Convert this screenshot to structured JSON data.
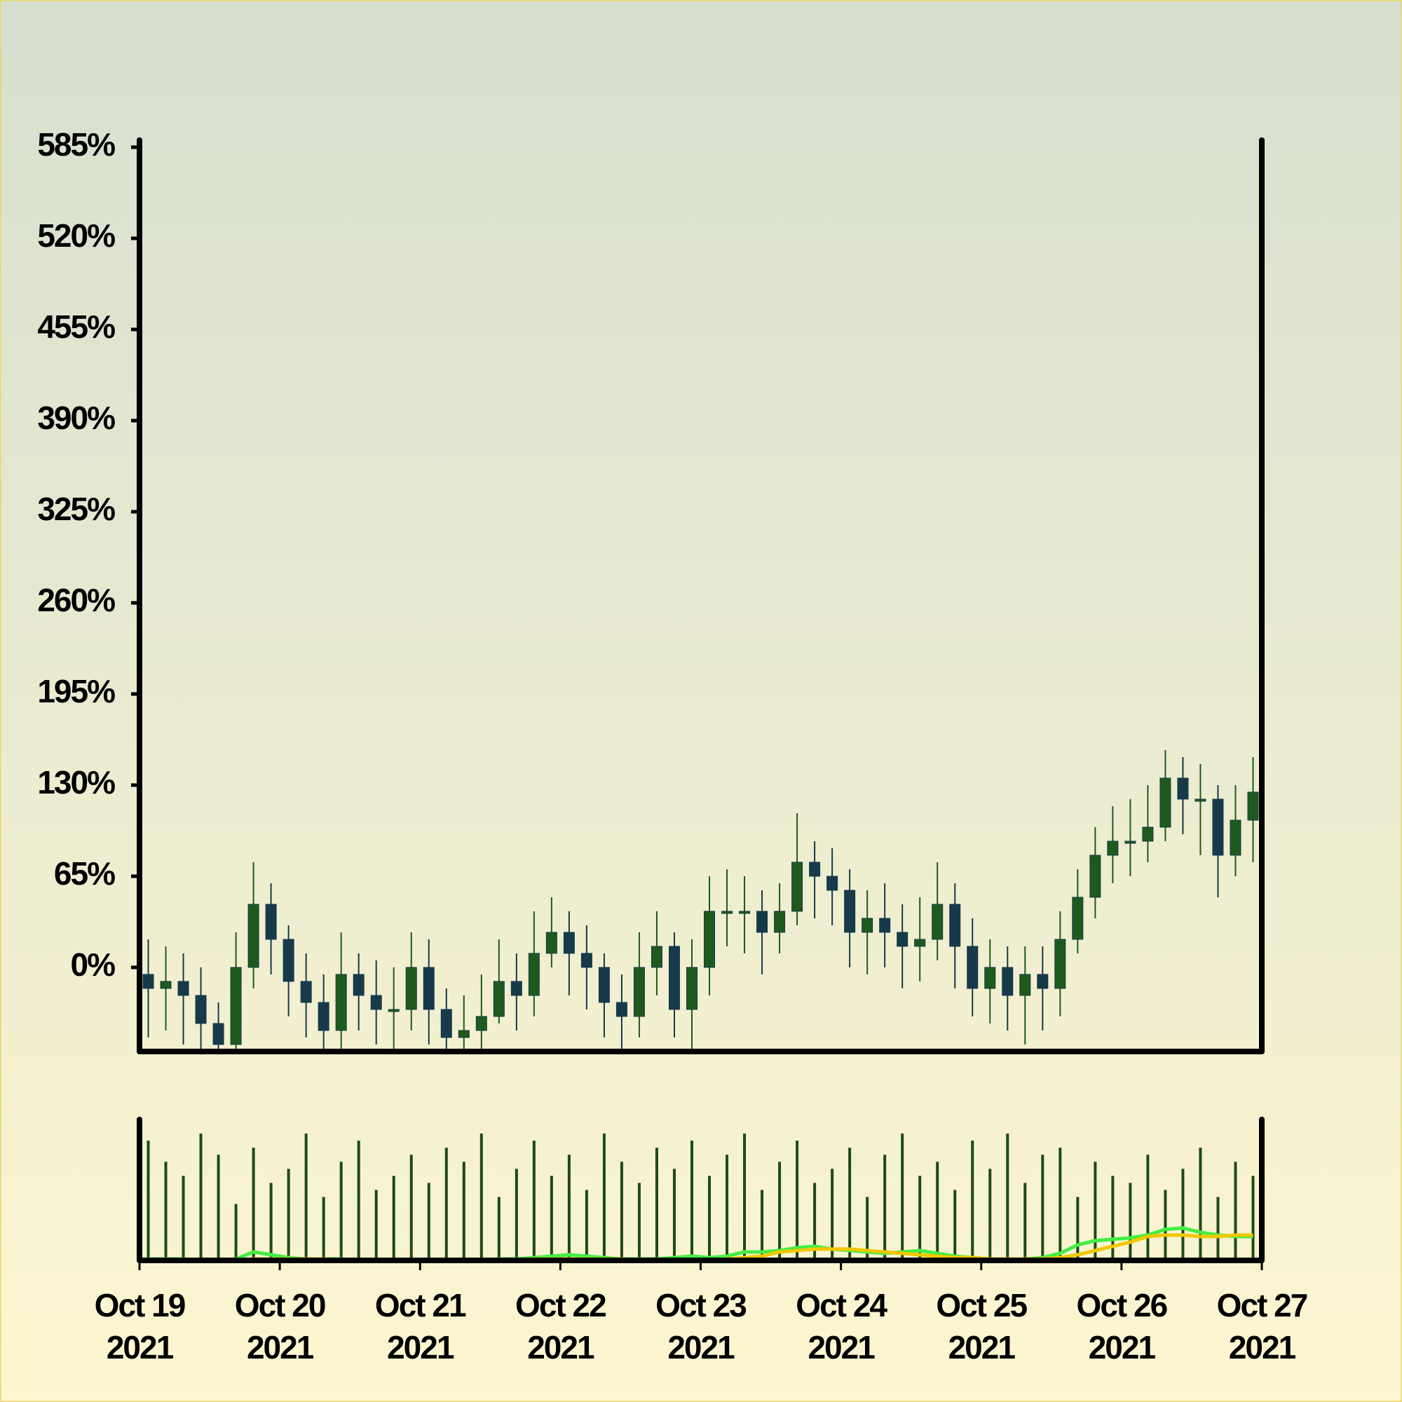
{
  "chart_data": {
    "type": "candlestick",
    "x": [
      "2021-10-19T00:00",
      "2021-10-19T03:00",
      "2021-10-19T06:00",
      "2021-10-19T09:00",
      "2021-10-19T12:00",
      "2021-10-19T15:00",
      "2021-10-19T18:00",
      "2021-10-19T21:00",
      "2021-10-20T00:00",
      "2021-10-20T03:00",
      "2021-10-20T06:00",
      "2021-10-20T09:00",
      "2021-10-20T12:00",
      "2021-10-20T15:00",
      "2021-10-20T18:00",
      "2021-10-20T21:00",
      "2021-10-21T00:00",
      "2021-10-21T03:00",
      "2021-10-21T06:00",
      "2021-10-21T09:00",
      "2021-10-21T12:00",
      "2021-10-21T15:00",
      "2021-10-21T18:00",
      "2021-10-21T21:00",
      "2021-10-22T00:00",
      "2021-10-22T03:00",
      "2021-10-22T06:00",
      "2021-10-22T09:00",
      "2021-10-22T12:00",
      "2021-10-22T15:00",
      "2021-10-22T18:00",
      "2021-10-22T21:00",
      "2021-10-23T00:00",
      "2021-10-23T03:00",
      "2021-10-23T06:00",
      "2021-10-23T09:00",
      "2021-10-23T12:00",
      "2021-10-23T15:00",
      "2021-10-23T18:00",
      "2021-10-23T21:00",
      "2021-10-24T00:00",
      "2021-10-24T03:00",
      "2021-10-24T06:00",
      "2021-10-24T09:00",
      "2021-10-24T12:00",
      "2021-10-24T15:00",
      "2021-10-24T18:00",
      "2021-10-24T21:00",
      "2021-10-25T00:00",
      "2021-10-25T03:00",
      "2021-10-25T06:00",
      "2021-10-25T09:00",
      "2021-10-25T12:00",
      "2021-10-25T15:00",
      "2021-10-25T18:00",
      "2021-10-25T21:00",
      "2021-10-26T00:00",
      "2021-10-26T03:00",
      "2021-10-26T06:00",
      "2021-10-26T09:00",
      "2021-10-26T12:00",
      "2021-10-26T15:00",
      "2021-10-26T18:00",
      "2021-10-26T21:00"
    ],
    "open": [
      -5,
      -15,
      -10,
      -20,
      -40,
      -55,
      0,
      45,
      20,
      -10,
      -25,
      -45,
      -5,
      -20,
      -30,
      -30,
      0,
      -30,
      -50,
      -45,
      -35,
      -10,
      -20,
      10,
      25,
      10,
      0,
      -25,
      -35,
      0,
      15,
      -30,
      0,
      40,
      40,
      40,
      25,
      40,
      75,
      65,
      55,
      25,
      35,
      25,
      15,
      20,
      45,
      15,
      -15,
      0,
      -20,
      -5,
      -15,
      20,
      50,
      80,
      90,
      90,
      100,
      135,
      120,
      120,
      80,
      105
    ],
    "high": [
      20,
      15,
      10,
      0,
      -25,
      25,
      75,
      60,
      30,
      10,
      -5,
      25,
      10,
      5,
      0,
      25,
      20,
      -15,
      -20,
      -5,
      20,
      10,
      40,
      50,
      40,
      30,
      10,
      -5,
      25,
      40,
      25,
      20,
      65,
      70,
      65,
      55,
      60,
      110,
      90,
      85,
      70,
      55,
      60,
      45,
      50,
      75,
      60,
      35,
      20,
      15,
      15,
      15,
      40,
      70,
      100,
      115,
      120,
      130,
      155,
      150,
      145,
      130,
      130,
      150
    ],
    "low": [
      -50,
      -45,
      -55,
      -60,
      -60,
      -60,
      -15,
      -5,
      -35,
      -50,
      -60,
      -60,
      -45,
      -55,
      -60,
      -45,
      -55,
      -60,
      -60,
      -60,
      -40,
      -45,
      -35,
      0,
      -20,
      -30,
      -50,
      -60,
      -50,
      -20,
      -50,
      -60,
      -20,
      15,
      10,
      -5,
      10,
      30,
      35,
      30,
      0,
      -5,
      0,
      -15,
      -10,
      5,
      -15,
      -35,
      -40,
      -45,
      -55,
      -45,
      -35,
      10,
      35,
      60,
      65,
      75,
      90,
      95,
      80,
      50,
      65,
      75
    ],
    "close": [
      -15,
      -10,
      -20,
      -40,
      -55,
      0,
      45,
      20,
      -10,
      -25,
      -45,
      -5,
      -20,
      -30,
      -30,
      0,
      -30,
      -50,
      -45,
      -35,
      -10,
      -20,
      10,
      25,
      10,
      0,
      -25,
      -35,
      0,
      15,
      -30,
      0,
      40,
      40,
      40,
      25,
      40,
      75,
      65,
      55,
      25,
      35,
      25,
      15,
      20,
      45,
      15,
      -15,
      0,
      -20,
      -5,
      -15,
      20,
      50,
      80,
      90,
      90,
      100,
      135,
      120,
      120,
      80,
      105,
      125
    ],
    "color_up": "#1e5a1e",
    "color_down": "#163a4a",
    "xlim": [
      "2021-10-19T00:00",
      "2021-10-27T00:00"
    ],
    "ylim": [
      -60,
      590
    ],
    "yticks": [
      {
        "value": 0,
        "label": "0%"
      },
      {
        "value": 65,
        "label": "65%"
      },
      {
        "value": 130,
        "label": "130%"
      },
      {
        "value": 195,
        "label": "195%"
      },
      {
        "value": 260,
        "label": "260%"
      },
      {
        "value": 325,
        "label": "325%"
      },
      {
        "value": 390,
        "label": "390%"
      },
      {
        "value": 455,
        "label": "455%"
      },
      {
        "value": 520,
        "label": "520%"
      },
      {
        "value": 585,
        "label": "585%"
      }
    ],
    "xticks": [
      {
        "value": "2021-10-19T00:00",
        "label": [
          "Oct 19",
          "2021"
        ]
      },
      {
        "value": "2021-10-20T00:00",
        "label": [
          "Oct 20",
          "2021"
        ]
      },
      {
        "value": "2021-10-21T00:00",
        "label": [
          "Oct 21",
          "2021"
        ]
      },
      {
        "value": "2021-10-22T00:00",
        "label": [
          "Oct 22",
          "2021"
        ]
      },
      {
        "value": "2021-10-23T00:00",
        "label": [
          "Oct 23",
          "2021"
        ]
      },
      {
        "value": "2021-10-24T00:00",
        "label": [
          "Oct 24",
          "2021"
        ]
      },
      {
        "value": "2021-10-25T00:00",
        "label": [
          "Oct 25",
          "2021"
        ]
      },
      {
        "value": "2021-10-26T00:00",
        "label": [
          "Oct 26",
          "2021"
        ]
      },
      {
        "value": "2021-10-27T00:00",
        "label": [
          "Oct 27",
          "2021"
        ]
      }
    ],
    "volume": {
      "color": "#1e4a14",
      "ylim": [
        0,
        100
      ],
      "values": [
        85,
        70,
        60,
        90,
        75,
        40,
        80,
        55,
        65,
        90,
        45,
        70,
        85,
        50,
        60,
        75,
        55,
        80,
        70,
        90,
        45,
        65,
        85,
        60,
        75,
        50,
        90,
        70,
        55,
        80,
        65,
        85,
        60,
        75,
        90,
        50,
        70,
        85,
        55,
        65,
        80,
        45,
        75,
        90,
        60,
        70,
        50,
        85,
        65,
        90,
        55,
        75,
        80,
        45,
        70,
        60,
        55,
        75,
        50,
        65,
        80,
        45,
        70,
        60
      ]
    },
    "volume_lines": [
      {
        "color": "#44ee44",
        "values": [
          1,
          1,
          1,
          0,
          0,
          1,
          6,
          4,
          2,
          1,
          1,
          1,
          0,
          0,
          0,
          0,
          0,
          0,
          0,
          0,
          1,
          1,
          2,
          3,
          4,
          3,
          2,
          1,
          1,
          1,
          2,
          3,
          2,
          3,
          6,
          6,
          7,
          9,
          10,
          8,
          7,
          6,
          5,
          6,
          7,
          5,
          3,
          2,
          1,
          1,
          1,
          2,
          5,
          11,
          14,
          15,
          16,
          18,
          22,
          23,
          20,
          18,
          17,
          17
        ]
      },
      {
        "color": "#f0c800",
        "values": [
          0,
          0,
          0,
          0,
          0,
          0,
          1,
          1,
          1,
          1,
          1,
          0,
          0,
          0,
          0,
          0,
          0,
          0,
          0,
          0,
          0,
          0,
          1,
          1,
          1,
          1,
          1,
          1,
          0,
          0,
          0,
          0,
          0,
          1,
          2,
          3,
          6,
          7,
          8,
          8,
          8,
          7,
          6,
          5,
          4,
          3,
          2,
          2,
          1,
          1,
          1,
          1,
          2,
          4,
          7,
          10,
          13,
          17,
          18,
          18,
          17,
          17,
          18,
          18
        ]
      }
    ]
  }
}
